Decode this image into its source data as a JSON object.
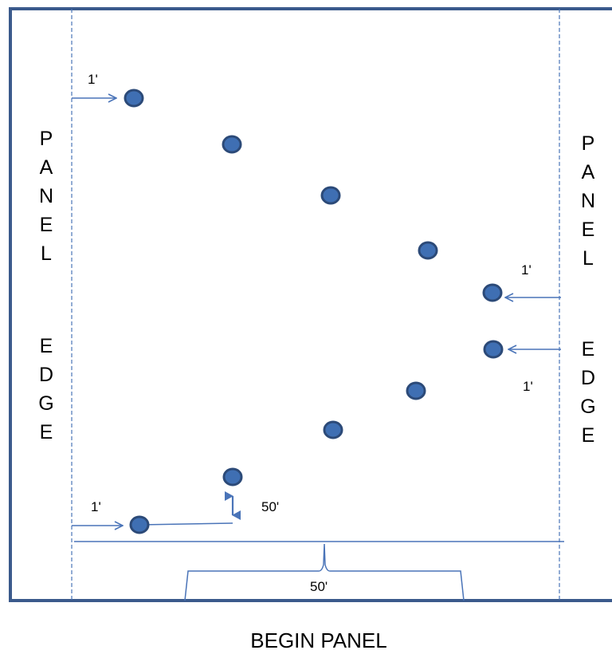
{
  "labels": {
    "left_panel": "PANEL",
    "left_edge": "EDGE",
    "right_panel": "PANEL",
    "right_edge": "EDGE",
    "bottom_caption": "BEGIN PANEL"
  },
  "dimensions": {
    "top_left_offset": "1'",
    "right_upper_offset": "1'",
    "right_lower_offset": "1'",
    "bottom_left_offset": "1'",
    "vertical_spacing": "50'",
    "horizontal_span": "50'"
  },
  "colors": {
    "border": "#3b5a8c",
    "guide": "#4a74b8",
    "arrow": "#4a74b8",
    "point_fill": "#3f6fb3",
    "point_stroke": "#2c4a78"
  }
}
